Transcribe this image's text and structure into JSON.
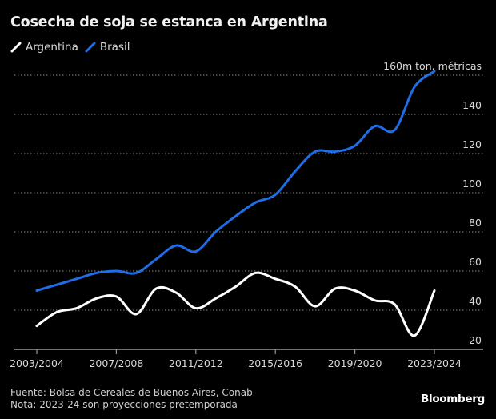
{
  "chart_data": {
    "type": "line",
    "title": "Cosecha de soja se estanca en Argentina",
    "xlabel": "",
    "ylabel": "",
    "unit_label": "160m ton. métricas",
    "ylim": [
      20,
      160
    ],
    "yticks": [
      20,
      40,
      60,
      80,
      100,
      120,
      140,
      160
    ],
    "ytick_labels": [
      "20",
      "40",
      "60",
      "80",
      "100",
      "120",
      "140",
      "160m ton. métricas"
    ],
    "grid": true,
    "legend_position": "top-left",
    "x": [
      "2003/2004",
      "2004/2005",
      "2005/2006",
      "2006/2007",
      "2007/2008",
      "2008/2009",
      "2009/2010",
      "2010/2011",
      "2011/2012",
      "2012/2013",
      "2013/2014",
      "2014/2015",
      "2015/2016",
      "2016/2017",
      "2017/2018",
      "2018/2019",
      "2019/2020",
      "2020/2021",
      "2021/2022",
      "2022/2023",
      "2023/2024"
    ],
    "xtick_labels": [
      "2003/2004",
      "2007/2008",
      "2011/2012",
      "2015/2016",
      "2019/2020",
      "2023/2024"
    ],
    "xtick_indices": [
      0,
      4,
      8,
      12,
      16,
      20
    ],
    "series": [
      {
        "name": "Argentina",
        "color": "#ffffff",
        "values": [
          32,
          39,
          41,
          46,
          47,
          38,
          51,
          49,
          41,
          46,
          52,
          59,
          56,
          52,
          42,
          51,
          50,
          45,
          43,
          27,
          50
        ]
      },
      {
        "name": "Brasil",
        "color": "#1f6ee8",
        "values": [
          50,
          53,
          56,
          59,
          60,
          59,
          66,
          73,
          70,
          80,
          88,
          95,
          99,
          111,
          121,
          121,
          124,
          134,
          132,
          154,
          162
        ]
      }
    ]
  },
  "footer": {
    "source": "Fuente: Bolsa de Cereales de Buenos Aires, Conab",
    "note": "Nota: 2023-24 son proyecciones pretemporada",
    "brand": "Bloomberg"
  }
}
